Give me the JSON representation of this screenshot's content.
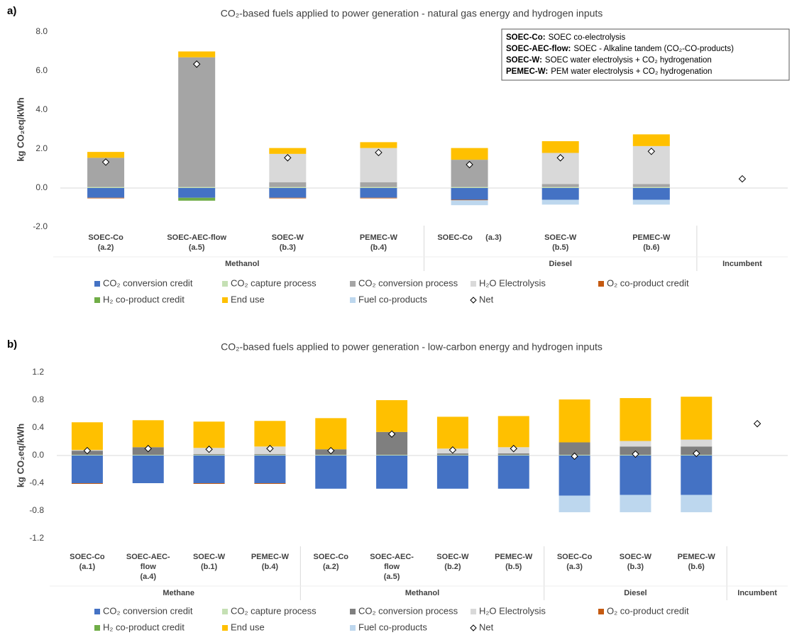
{
  "chart_data": [
    {
      "type": "bar",
      "stacked": true,
      "panel": "a)",
      "title": "CO₂-based fuels applied to power generation - natural gas energy and hydrogen inputs",
      "y_label": "kg CO₂eq/kWh",
      "notes": [
        {
          "term": "SOEC-Co:",
          "desc": "SOEC co-electrolysis"
        },
        {
          "term": "SOEC-AEC-flow:",
          "desc": "SOEC - Alkaline tandem (CO₂-CO-products)"
        },
        {
          "term": "SOEC-W:",
          "desc": "SOEC water electrolysis + CO₂ hydrogenation"
        },
        {
          "term": "PEMEC-W:",
          "desc": "PEM water electrolysis + CO₂ hydrogenation"
        }
      ],
      "groups": [
        {
          "label": "Methanol",
          "categories": [
            [
              "SOEC-Co",
              "(a.2)"
            ],
            [
              "SOEC-AEC-flow",
              "(a.5)"
            ],
            [
              "SOEC-W",
              "(b.3)"
            ],
            [
              "PEMEC-W",
              "(b.4)"
            ]
          ]
        },
        {
          "label": "Diesel",
          "categories": [
            [
              "SOEC-Co      (a.3)"
            ],
            [
              "SOEC-W",
              "(b.5)"
            ],
            [
              "PEMEC-W",
              "(b.6)"
            ]
          ]
        },
        {
          "label": "Incumbent",
          "categories": [
            null
          ]
        }
      ],
      "ylim": [
        -2,
        8
      ],
      "yticks": [
        {
          "value": -2,
          "label": "-2.0"
        },
        {
          "value": 0,
          "label": "0.0"
        },
        {
          "value": 2,
          "label": "2.0"
        },
        {
          "value": 4,
          "label": "4.0"
        },
        {
          "value": 6,
          "label": "6.0"
        },
        {
          "value": 8,
          "label": "8.0"
        }
      ],
      "grid": false,
      "series": [
        {
          "name": "CO₂ conversion credit",
          "color": "#4472c4",
          "values": [
            -0.5,
            -0.5,
            -0.5,
            -0.5,
            -0.6,
            -0.6,
            -0.6,
            null
          ]
        },
        {
          "name": "CO₂ capture process",
          "color": "#c5e0b4",
          "values": [
            0.05,
            0.05,
            0.05,
            0.05,
            0.05,
            0.05,
            0.05,
            null
          ]
        },
        {
          "name": "CO₂ conversion process",
          "color": "#a5a5a5",
          "values": [
            1.5,
            6.65,
            0.25,
            0.25,
            1.4,
            0.15,
            0.15,
            null
          ]
        },
        {
          "name": "H₂O Electrolysis",
          "color": "#d9d9d9",
          "values": [
            null,
            null,
            1.45,
            1.75,
            null,
            1.6,
            1.95,
            null
          ]
        },
        {
          "name": "O₂ co-product credit",
          "color": "#c55a11",
          "values": [
            -0.03,
            null,
            -0.03,
            -0.03,
            -0.03,
            null,
            null,
            null
          ]
        },
        {
          "name": "H₂ co-product credit",
          "color": "#70ad47",
          "values": [
            null,
            -0.15,
            null,
            null,
            null,
            null,
            null,
            null
          ]
        },
        {
          "name": "End use",
          "color": "#ffc000",
          "values": [
            0.3,
            0.3,
            0.3,
            0.3,
            0.6,
            0.6,
            0.6,
            null
          ]
        },
        {
          "name": "Fuel co-products",
          "color": "#bdd7ee",
          "values": [
            null,
            null,
            null,
            null,
            -0.25,
            -0.25,
            -0.25,
            null
          ]
        },
        {
          "name": "Net",
          "type": "scatter",
          "marker": "diamond",
          "color": "#ffffff",
          "values": [
            1.33,
            6.35,
            1.55,
            1.82,
            1.2,
            1.55,
            1.88,
            0.47
          ]
        }
      ]
    },
    {
      "type": "bar",
      "stacked": true,
      "panel": "b)",
      "title": "CO₂-based fuels applied to power generation - low-carbon energy and hydrogen inputs",
      "y_label": "kg CO₂eq/kWh",
      "groups": [
        {
          "label": "Methane",
          "categories": [
            [
              "SOEC-Co",
              "(a.1)"
            ],
            [
              "SOEC-AEC-",
              "flow",
              "(a.4)"
            ],
            [
              "SOEC-W",
              "(b.1)"
            ],
            [
              "PEMEC-W",
              "(b.4)"
            ]
          ]
        },
        {
          "label": "Methanol",
          "categories": [
            [
              "SOEC-Co",
              "(a.2)"
            ],
            [
              "SOEC-AEC-",
              "flow",
              "(a.5)"
            ],
            [
              "SOEC-W",
              "(b.2)"
            ],
            [
              "PEMEC-W",
              "(b.5)"
            ]
          ]
        },
        {
          "label": "Diesel",
          "categories": [
            [
              "SOEC-Co",
              "(a.3)"
            ],
            [
              "SOEC-W",
              "(b.3)"
            ],
            [
              "PEMEC-W",
              "(b.6)"
            ]
          ]
        },
        {
          "label": "Incumbent",
          "categories": [
            null
          ]
        }
      ],
      "ylim": [
        -1.2,
        1.2
      ],
      "yticks": [
        -1.2,
        -0.8,
        -0.4,
        {
          "value": 0,
          "label": "0.0"
        },
        0.4,
        0.8,
        1.2
      ],
      "grid": false,
      "series": [
        {
          "name": "CO₂ conversion credit",
          "color": "#4472c4",
          "values": [
            -0.4,
            -0.4,
            -0.4,
            -0.4,
            -0.48,
            -0.48,
            -0.48,
            -0.48,
            -0.58,
            -0.57,
            -0.57,
            null
          ]
        },
        {
          "name": "CO₂ capture process",
          "color": "#c5e0b4",
          "values": [
            0.01,
            0.01,
            0.01,
            0.01,
            0.01,
            0.01,
            0.01,
            0.01,
            0.01,
            0.01,
            0.01,
            null
          ]
        },
        {
          "name": "CO₂ conversion process",
          "color": "#7f7f7f",
          "values": [
            0.06,
            0.11,
            0.01,
            0.01,
            0.08,
            0.33,
            0.02,
            0.02,
            0.18,
            0.12,
            0.12,
            null
          ]
        },
        {
          "name": "H₂O Electrolysis",
          "color": "#d9d9d9",
          "values": [
            0.01,
            null,
            0.09,
            0.11,
            null,
            null,
            0.07,
            0.09,
            null,
            0.08,
            0.1,
            null
          ]
        },
        {
          "name": "O₂ co-product credit",
          "color": "#c55a11",
          "values": [
            -0.01,
            null,
            -0.01,
            -0.01,
            null,
            null,
            null,
            null,
            null,
            null,
            null,
            null
          ]
        },
        {
          "name": "H₂ co-product credit",
          "color": "#70ad47",
          "values": [
            null,
            null,
            null,
            null,
            null,
            null,
            null,
            null,
            null,
            null,
            null,
            null
          ]
        },
        {
          "name": "End use",
          "color": "#ffc000",
          "values": [
            0.4,
            0.39,
            0.38,
            0.37,
            0.45,
            0.46,
            0.46,
            0.45,
            0.62,
            0.62,
            0.62,
            null
          ]
        },
        {
          "name": "Fuel co-products",
          "color": "#bdd7ee",
          "values": [
            null,
            null,
            null,
            null,
            null,
            null,
            null,
            null,
            -0.24,
            -0.25,
            -0.25,
            null
          ]
        },
        {
          "name": "Net",
          "type": "scatter",
          "marker": "diamond",
          "color": "#ffffff",
          "values": [
            0.07,
            0.1,
            0.09,
            0.1,
            0.07,
            0.31,
            0.08,
            0.1,
            -0.01,
            0.02,
            0.03,
            0.46
          ]
        }
      ]
    }
  ]
}
